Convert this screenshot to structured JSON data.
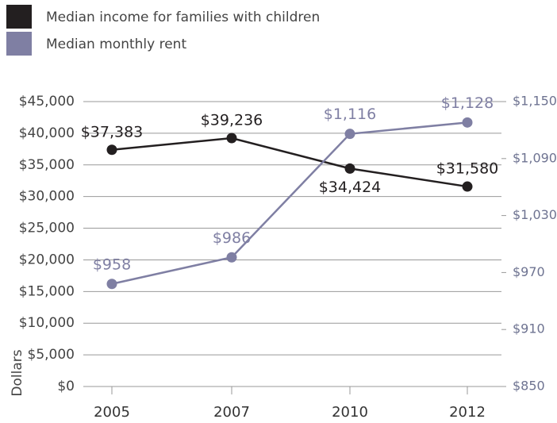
{
  "chart_data": {
    "type": "line",
    "y_label": "Dollars",
    "categories": [
      "2005",
      "2007",
      "2010",
      "2012"
    ],
    "series": [
      {
        "name": "Median income for families with children",
        "color": "#231f20",
        "values": [
          37383,
          39236,
          34424,
          31580
        ],
        "value_labels": [
          "$37,383",
          "$39,236",
          "$34,424",
          "$31,580"
        ]
      },
      {
        "name": "Median monthly rent",
        "color": "#7f7fa3",
        "axis": "y2",
        "values": [
          958,
          986,
          1116,
          1128
        ],
        "value_labels": [
          "$958",
          "$986",
          "$1,116",
          "$1,128"
        ]
      }
    ],
    "ylim": [
      0,
      45000
    ],
    "yticks": [
      {
        "value": 0,
        "label": "$0"
      },
      {
        "value": 5000,
        "label": "$5,000"
      },
      {
        "value": 10000,
        "label": "$10,000"
      },
      {
        "value": 15000,
        "label": "$15,000"
      },
      {
        "value": 20000,
        "label": "$20,000"
      },
      {
        "value": 25000,
        "label": "$25,000"
      },
      {
        "value": 30000,
        "label": "$30,000"
      },
      {
        "value": 35000,
        "label": "$35,000"
      },
      {
        "value": 40000,
        "label": "$40,000"
      },
      {
        "value": 45000,
        "label": "$45,000"
      }
    ],
    "y2lim": [
      850,
      1150
    ],
    "y2ticks": [
      {
        "value": 850,
        "label": "$850"
      },
      {
        "value": 910,
        "label": "$910"
      },
      {
        "value": 970,
        "label": "$970"
      },
      {
        "value": 1030,
        "label": "$1,030"
      },
      {
        "value": 1090,
        "label": "$1,090"
      },
      {
        "value": 1150,
        "label": "$1,150"
      }
    ],
    "grid": true
  }
}
